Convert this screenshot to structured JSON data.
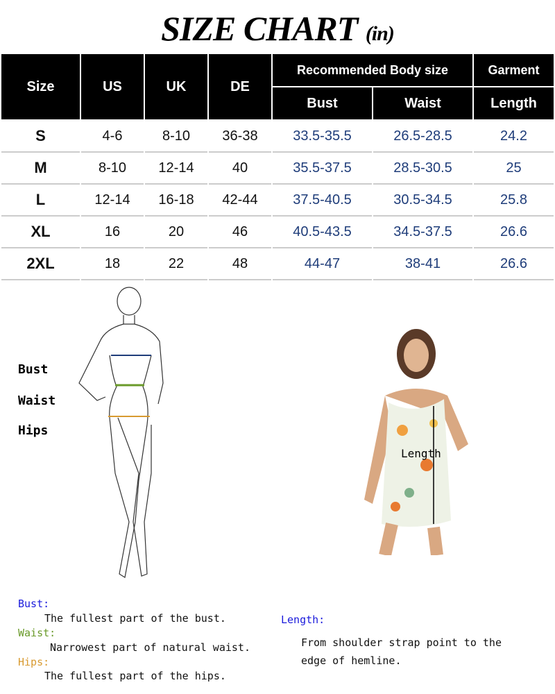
{
  "title": {
    "main": "SIZE CHART",
    "unit": "(in)"
  },
  "table": {
    "headers": {
      "size": "Size",
      "us": "US",
      "uk": "UK",
      "de": "DE",
      "body_group": "Recommended Body size",
      "garment_group": "Garment",
      "bust": "Bust",
      "waist": "Waist",
      "length": "Length"
    },
    "rows": [
      {
        "size": "S",
        "us": "4-6",
        "uk": "8-10",
        "de": "36-38",
        "bust": "33.5-35.5",
        "waist": "26.5-28.5",
        "length": "24.2"
      },
      {
        "size": "M",
        "us": "8-10",
        "uk": "12-14",
        "de": "40",
        "bust": "35.5-37.5",
        "waist": "28.5-30.5",
        "length": "25"
      },
      {
        "size": "L",
        "us": "12-14",
        "uk": "16-18",
        "de": "42-44",
        "bust": "37.5-40.5",
        "waist": "30.5-34.5",
        "length": "25.8"
      },
      {
        "size": "XL",
        "us": "16",
        "uk": "20",
        "de": "46",
        "bust": "40.5-43.5",
        "waist": "34.5-37.5",
        "length": "26.6"
      },
      {
        "size": "2XL",
        "us": "18",
        "uk": "22",
        "de": "48",
        "bust": "44-47",
        "waist": "38-41",
        "length": "26.6"
      }
    ]
  },
  "figure_labels": {
    "bust": "Bust",
    "waist": "Waist",
    "hips": "Hips",
    "length": "Length"
  },
  "definitions": {
    "bust_title": "Bust:",
    "bust_text": "The fullest part of the bust.",
    "waist_title": "Waist:",
    "waist_text": "Narrowest part of natural waist.",
    "hips_title": "Hips:",
    "hips_text": "The fullest part of the hips.",
    "length_title": "Length:",
    "length_text_1": "From shoulder strap point to the",
    "length_text_2": "edge of hemline."
  },
  "colors": {
    "bust": "#1a1adc",
    "waist": "#6a9a2a",
    "hips": "#d89a30",
    "length": "#1a1adc",
    "value": "#1f3d7a"
  }
}
